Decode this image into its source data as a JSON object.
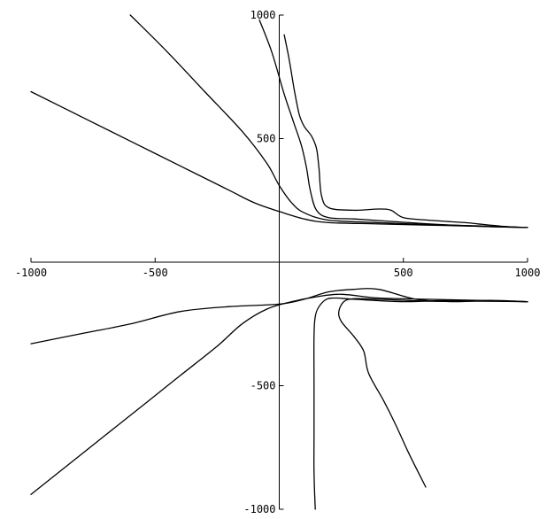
{
  "chart_data": {
    "type": "line",
    "title": "",
    "xlabel": "",
    "ylabel": "",
    "xlim": [
      -1000,
      1000
    ],
    "ylim": [
      -1000,
      1000
    ],
    "grid": false,
    "legend": "none",
    "line_color": "#000000",
    "x_ticks": [
      {
        "value": -1000,
        "label": "-1000"
      },
      {
        "value": -500,
        "label": "-500"
      },
      {
        "value": 500,
        "label": "500"
      },
      {
        "value": 1000,
        "label": "1000"
      }
    ],
    "y_ticks": [
      {
        "value": 1000,
        "label": "1000"
      },
      {
        "value": 500,
        "label": "500"
      },
      {
        "value": -500,
        "label": "-500"
      },
      {
        "value": -1000,
        "label": "-1000"
      }
    ],
    "series": [
      {
        "points": [
          [
            -1000,
            690
          ],
          [
            -800,
            590
          ],
          [
            -600,
            490
          ],
          [
            -400,
            390
          ],
          [
            -200,
            290
          ],
          [
            -100,
            240
          ],
          [
            0,
            205
          ],
          [
            100,
            175
          ],
          [
            200,
            160
          ],
          [
            400,
            155
          ],
          [
            600,
            150
          ],
          [
            800,
            145
          ],
          [
            1000,
            140
          ]
        ]
      },
      {
        "points": [
          [
            -600,
            1000
          ],
          [
            -450,
            850
          ],
          [
            -300,
            690
          ],
          [
            -150,
            530
          ],
          [
            -50,
            400
          ],
          [
            0,
            310
          ],
          [
            50,
            240
          ],
          [
            100,
            200
          ],
          [
            200,
            170
          ],
          [
            400,
            160
          ],
          [
            600,
            152
          ],
          [
            800,
            147
          ],
          [
            1000,
            140
          ]
        ]
      },
      {
        "points": [
          [
            -80,
            980
          ],
          [
            -30,
            850
          ],
          [
            20,
            680
          ],
          [
            60,
            560
          ],
          [
            90,
            470
          ],
          [
            110,
            380
          ],
          [
            125,
            290
          ],
          [
            150,
            210
          ],
          [
            200,
            180
          ],
          [
            300,
            175
          ],
          [
            450,
            165
          ],
          [
            600,
            155
          ],
          [
            800,
            145
          ],
          [
            1000,
            140
          ]
        ]
      },
      {
        "points": [
          [
            20,
            920
          ],
          [
            40,
            820
          ],
          [
            60,
            700
          ],
          [
            80,
            600
          ],
          [
            100,
            550
          ],
          [
            130,
            510
          ],
          [
            150,
            460
          ],
          [
            160,
            380
          ],
          [
            170,
            270
          ],
          [
            200,
            220
          ],
          [
            300,
            210
          ],
          [
            400,
            215
          ],
          [
            450,
            210
          ],
          [
            500,
            180
          ],
          [
            600,
            170
          ],
          [
            750,
            160
          ],
          [
            800,
            155
          ],
          [
            900,
            145
          ],
          [
            1000,
            140
          ]
        ]
      },
      {
        "points": [
          [
            -1000,
            -330
          ],
          [
            -800,
            -290
          ],
          [
            -600,
            -250
          ],
          [
            -400,
            -200
          ],
          [
            -200,
            -180
          ],
          [
            0,
            -170
          ],
          [
            100,
            -150
          ],
          [
            200,
            -120
          ],
          [
            300,
            -110
          ],
          [
            400,
            -110
          ],
          [
            550,
            -150
          ],
          [
            700,
            -160
          ],
          [
            850,
            -155
          ],
          [
            1000,
            -160
          ]
        ]
      },
      {
        "points": [
          [
            -1000,
            -940
          ],
          [
            -800,
            -780
          ],
          [
            -600,
            -620
          ],
          [
            -400,
            -460
          ],
          [
            -250,
            -340
          ],
          [
            -150,
            -250
          ],
          [
            -50,
            -190
          ],
          [
            50,
            -160
          ],
          [
            150,
            -140
          ],
          [
            250,
            -130
          ],
          [
            400,
            -145
          ],
          [
            600,
            -150
          ],
          [
            800,
            -155
          ],
          [
            1000,
            -160
          ]
        ]
      },
      {
        "points": [
          [
            145,
            -1000
          ],
          [
            140,
            -850
          ],
          [
            140,
            -700
          ],
          [
            140,
            -500
          ],
          [
            140,
            -300
          ],
          [
            145,
            -220
          ],
          [
            160,
            -180
          ],
          [
            190,
            -150
          ],
          [
            230,
            -145
          ],
          [
            300,
            -150
          ],
          [
            500,
            -160
          ],
          [
            700,
            -155
          ],
          [
            1000,
            -160
          ]
        ]
      },
      {
        "points": [
          [
            590,
            -910
          ],
          [
            520,
            -770
          ],
          [
            470,
            -660
          ],
          [
            420,
            -560
          ],
          [
            360,
            -450
          ],
          [
            340,
            -360
          ],
          [
            300,
            -300
          ],
          [
            250,
            -240
          ],
          [
            240,
            -200
          ],
          [
            260,
            -160
          ],
          [
            300,
            -148
          ],
          [
            400,
            -150
          ],
          [
            600,
            -158
          ],
          [
            800,
            -158
          ],
          [
            1000,
            -160
          ]
        ]
      }
    ]
  }
}
